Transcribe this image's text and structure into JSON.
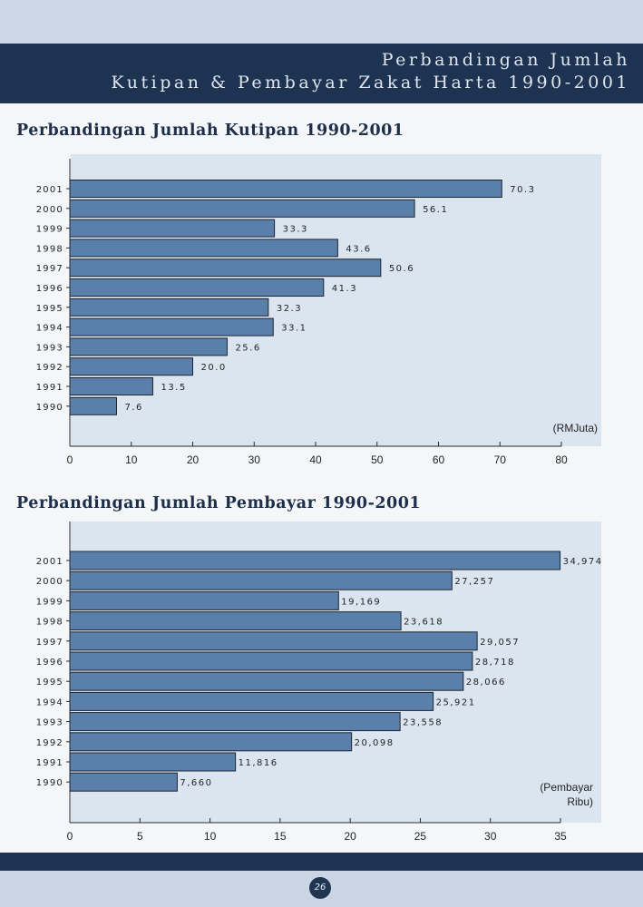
{
  "header": {
    "line1": "Perbandingan Jumlah",
    "line2": "Kutipan & Pembayar Zakat Harta 1990-2001"
  },
  "page_number": "26",
  "chart_data": [
    {
      "type": "bar",
      "orientation": "horizontal",
      "title": "Perbandingan Jumlah Kutipan 1990-2001",
      "unit_label": "(RMJuta)",
      "categories": [
        "2001",
        "2000",
        "1999",
        "1998",
        "1997",
        "1996",
        "1995",
        "1994",
        "1993",
        "1992",
        "1991",
        "1990"
      ],
      "values": [
        70.3,
        56.1,
        33.3,
        43.6,
        50.6,
        41.3,
        32.3,
        33.1,
        25.6,
        20.0,
        13.5,
        7.6
      ],
      "value_labels": [
        "70.3",
        "56.1",
        "33.3",
        "43.6",
        "50.6",
        "41.3",
        "32.3",
        "33.1",
        "25.6",
        "20.0",
        "13.5",
        "7.6"
      ],
      "xlim": [
        0,
        80
      ],
      "xticks": [
        "0",
        "10",
        "20",
        "30",
        "40",
        "50",
        "60",
        "70",
        "80"
      ],
      "grid": false,
      "bar_color": "#5a7faa",
      "background": "#dbe5f0"
    },
    {
      "type": "bar",
      "orientation": "horizontal",
      "title": "Perbandingan Jumlah Pembayar 1990-2001",
      "unit_label": [
        "(Pembayar",
        "Ribu)"
      ],
      "categories": [
        "2001",
        "2000",
        "1999",
        "1998",
        "1997",
        "1996",
        "1995",
        "1994",
        "1993",
        "1992",
        "1991",
        "1990"
      ],
      "values": [
        34.974,
        27.257,
        19.169,
        23.618,
        29.057,
        28.718,
        28.066,
        25.921,
        23.558,
        20.098,
        11.816,
        7.66
      ],
      "value_labels": [
        "34,974",
        "27,257",
        "19,169",
        "23,618",
        "29,057",
        "28,718",
        "28,066",
        "25,921",
        "23,558",
        "20,098",
        "11,816",
        "7,660"
      ],
      "xlim": [
        0,
        35
      ],
      "xticks": [
        "0",
        "5",
        "10",
        "15",
        "20",
        "25",
        "30",
        "35"
      ],
      "grid": false,
      "bar_color": "#5a7faa",
      "background": "#dbe5f0"
    }
  ]
}
